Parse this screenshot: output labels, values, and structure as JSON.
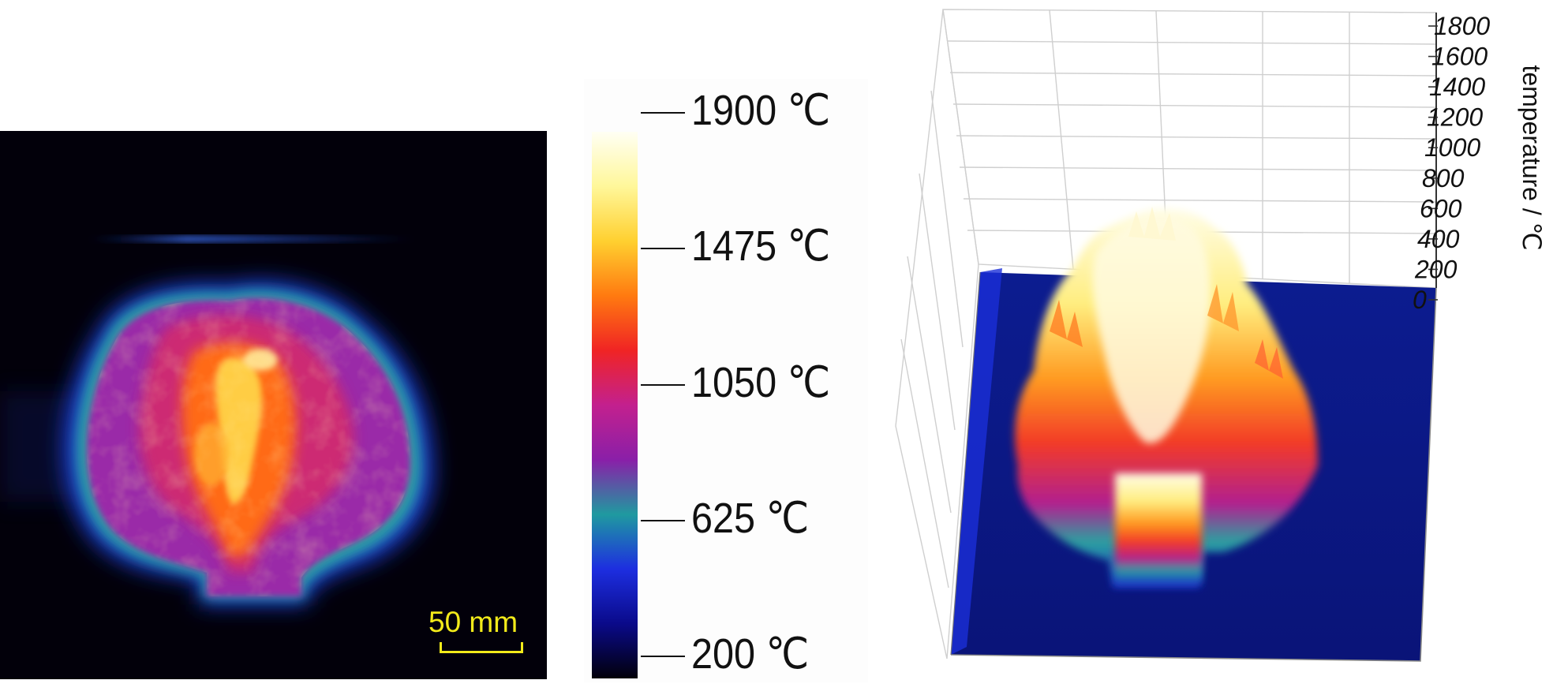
{
  "thermal_image": {
    "scale_bar_label": "50 mm",
    "scale_bar_color": "#f2ea1a",
    "background_color": "#02000a"
  },
  "colorbar": {
    "labels": [
      "1900 ℃",
      "1475 ℃",
      "1050 ℃",
      "625 ℃",
      "200 ℃"
    ],
    "stops": [
      "#02000a",
      "#0a0a8a",
      "#1d2ee0",
      "#1f9aa0",
      "#8a1fa8",
      "#c3208e",
      "#f02424",
      "#ff7a10",
      "#ffd030",
      "#fff79a",
      "#fffff4"
    ]
  },
  "surface_plot": {
    "z_axis_title": "temperature / ℃",
    "z_tick_labels": [
      "0",
      "200",
      "400",
      "600",
      "800",
      "1000",
      "1200",
      "1400",
      "1600",
      "1800"
    ],
    "base_color": "#0a1a8c"
  }
}
